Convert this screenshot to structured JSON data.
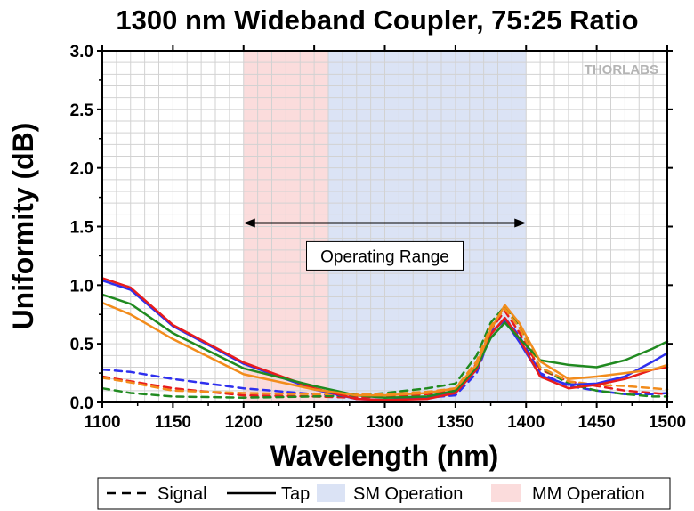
{
  "chart_data": {
    "type": "line",
    "title": "1300 nm Wideband Coupler, 75:25 Ratio",
    "xlabel": "Wavelength (nm)",
    "ylabel": "Uniformity (dB)",
    "xlim": [
      1100,
      1500
    ],
    "ylim": [
      0,
      3.0
    ],
    "x_ticks": [
      "1100",
      "1150",
      "1200",
      "1250",
      "1300",
      "1350",
      "1400",
      "1450",
      "1500"
    ],
    "y_ticks": [
      "0.0",
      "0.5",
      "1.0",
      "1.5",
      "2.0",
      "2.5",
      "3.0"
    ],
    "grid": true,
    "logo": "THORLABS",
    "bands": [
      {
        "name": "MM Operation",
        "x0": 1200,
        "x1": 1260,
        "color": "#fbdcdc"
      },
      {
        "name": "SM Operation",
        "x0": 1260,
        "x1": 1400,
        "color": "#dbe3f5"
      }
    ],
    "annotation": {
      "text": "Operating Range",
      "x0": 1200,
      "x1": 1400,
      "y": 1.53,
      "label_x": 1300,
      "label_y": 1.25
    },
    "legend": {
      "placement": "bottom",
      "items": [
        {
          "label": "Signal",
          "kind": "dashed-line"
        },
        {
          "label": "Tap",
          "kind": "solid-line"
        },
        {
          "label": "SM Operation",
          "kind": "patch",
          "color": "#dbe3f5"
        },
        {
          "label": "MM Operation",
          "kind": "patch",
          "color": "#fbdcdc"
        }
      ]
    },
    "series": [
      {
        "style": "tap",
        "color": "#2f30ee",
        "x": [
          1100,
          1120,
          1150,
          1200,
          1250,
          1280,
          1300,
          1330,
          1350,
          1365,
          1375,
          1385,
          1395,
          1410,
          1430,
          1450,
          1470,
          1490,
          1500
        ],
        "y": [
          1.04,
          0.96,
          0.65,
          0.33,
          0.11,
          0.03,
          0.02,
          0.04,
          0.09,
          0.3,
          0.6,
          0.7,
          0.52,
          0.23,
          0.15,
          0.16,
          0.22,
          0.35,
          0.42
        ]
      },
      {
        "style": "tap",
        "color": "#e81c1c",
        "x": [
          1100,
          1120,
          1150,
          1200,
          1250,
          1280,
          1300,
          1330,
          1350,
          1365,
          1375,
          1385,
          1395,
          1410,
          1430,
          1450,
          1470,
          1490,
          1500
        ],
        "y": [
          1.06,
          0.98,
          0.66,
          0.34,
          0.12,
          0.03,
          0.02,
          0.03,
          0.08,
          0.28,
          0.58,
          0.72,
          0.55,
          0.22,
          0.12,
          0.15,
          0.2,
          0.28,
          0.3
        ]
      },
      {
        "style": "tap",
        "color": "#208a20",
        "x": [
          1100,
          1120,
          1150,
          1200,
          1250,
          1280,
          1300,
          1330,
          1350,
          1365,
          1375,
          1385,
          1395,
          1410,
          1430,
          1450,
          1470,
          1490,
          1500
        ],
        "y": [
          0.92,
          0.84,
          0.59,
          0.29,
          0.14,
          0.06,
          0.04,
          0.05,
          0.1,
          0.3,
          0.55,
          0.68,
          0.55,
          0.36,
          0.32,
          0.3,
          0.36,
          0.46,
          0.52
        ]
      },
      {
        "style": "tap",
        "color": "#f28c1c",
        "x": [
          1100,
          1120,
          1150,
          1200,
          1250,
          1280,
          1300,
          1330,
          1350,
          1365,
          1375,
          1385,
          1395,
          1410,
          1430,
          1450,
          1470,
          1490,
          1500
        ],
        "y": [
          0.85,
          0.75,
          0.54,
          0.24,
          0.11,
          0.06,
          0.06,
          0.08,
          0.12,
          0.32,
          0.62,
          0.83,
          0.68,
          0.35,
          0.2,
          0.22,
          0.25,
          0.28,
          0.32
        ]
      },
      {
        "style": "signal",
        "color": "#2f30ee",
        "x": [
          1100,
          1120,
          1150,
          1200,
          1250,
          1280,
          1300,
          1330,
          1350,
          1365,
          1375,
          1385,
          1395,
          1410,
          1430,
          1450,
          1470,
          1490,
          1500
        ],
        "y": [
          0.28,
          0.26,
          0.2,
          0.12,
          0.07,
          0.05,
          0.05,
          0.04,
          0.06,
          0.25,
          0.58,
          0.72,
          0.57,
          0.25,
          0.14,
          0.1,
          0.07,
          0.07,
          0.08
        ]
      },
      {
        "style": "signal",
        "color": "#e81c1c",
        "x": [
          1100,
          1120,
          1150,
          1200,
          1250,
          1280,
          1300,
          1330,
          1350,
          1365,
          1375,
          1385,
          1395,
          1410,
          1430,
          1450,
          1470,
          1490,
          1500
        ],
        "y": [
          0.22,
          0.18,
          0.12,
          0.06,
          0.05,
          0.04,
          0.05,
          0.07,
          0.1,
          0.33,
          0.62,
          0.78,
          0.6,
          0.28,
          0.18,
          0.14,
          0.1,
          0.08,
          0.07
        ]
      },
      {
        "style": "signal",
        "color": "#208a20",
        "x": [
          1100,
          1120,
          1150,
          1200,
          1250,
          1280,
          1300,
          1330,
          1350,
          1365,
          1375,
          1385,
          1395,
          1410,
          1430,
          1450,
          1470,
          1490,
          1500
        ],
        "y": [
          0.12,
          0.08,
          0.05,
          0.04,
          0.05,
          0.06,
          0.08,
          0.12,
          0.16,
          0.4,
          0.68,
          0.82,
          0.66,
          0.3,
          0.16,
          0.1,
          0.07,
          0.05,
          0.05
        ]
      },
      {
        "style": "signal",
        "color": "#f28c1c",
        "x": [
          1100,
          1120,
          1150,
          1200,
          1250,
          1280,
          1300,
          1330,
          1350,
          1365,
          1375,
          1385,
          1395,
          1410,
          1430,
          1450,
          1470,
          1490,
          1500
        ],
        "y": [
          0.21,
          0.17,
          0.1,
          0.08,
          0.07,
          0.07,
          0.07,
          0.09,
          0.12,
          0.35,
          0.65,
          0.8,
          0.64,
          0.3,
          0.18,
          0.15,
          0.14,
          0.12,
          0.11
        ]
      }
    ]
  }
}
